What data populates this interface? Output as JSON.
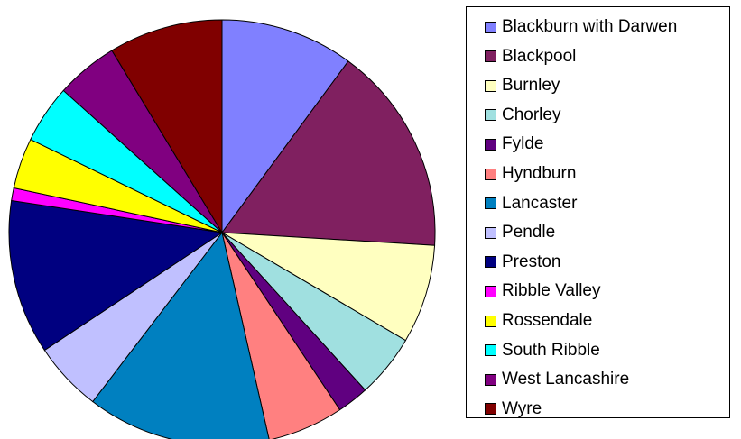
{
  "chart_data": {
    "type": "pie",
    "title": "",
    "legend_position": "right",
    "slices": [
      {
        "label": "Blackburn with Darwen",
        "value": 10.5,
        "color": "#8080ff"
      },
      {
        "label": "Blackpool",
        "value": 16.5,
        "color": "#802060"
      },
      {
        "label": "Burnley",
        "value": 7.8,
        "color": "#ffffc0"
      },
      {
        "label": "Chorley",
        "value": 5.0,
        "color": "#a0e0e0"
      },
      {
        "label": "Fylde",
        "value": 2.5,
        "color": "#600080"
      },
      {
        "label": "Hyndburn",
        "value": 6.0,
        "color": "#ff8080"
      },
      {
        "label": "Lancaster",
        "value": 14.5,
        "color": "#0080c0"
      },
      {
        "label": "Pendle",
        "value": 5.5,
        "color": "#c0c0ff"
      },
      {
        "label": "Preston",
        "value": 12.2,
        "color": "#000080"
      },
      {
        "label": "Ribble Valley",
        "value": 1.0,
        "color": "#ff00ff"
      },
      {
        "label": "Rossendale",
        "value": 4.0,
        "color": "#ffff00"
      },
      {
        "label": "South Ribble",
        "value": 4.6,
        "color": "#00ffff"
      },
      {
        "label": "West Lancashire",
        "value": 4.9,
        "color": "#800080"
      },
      {
        "label": "Wyre",
        "value": 9.0,
        "color": "#800000"
      }
    ]
  }
}
